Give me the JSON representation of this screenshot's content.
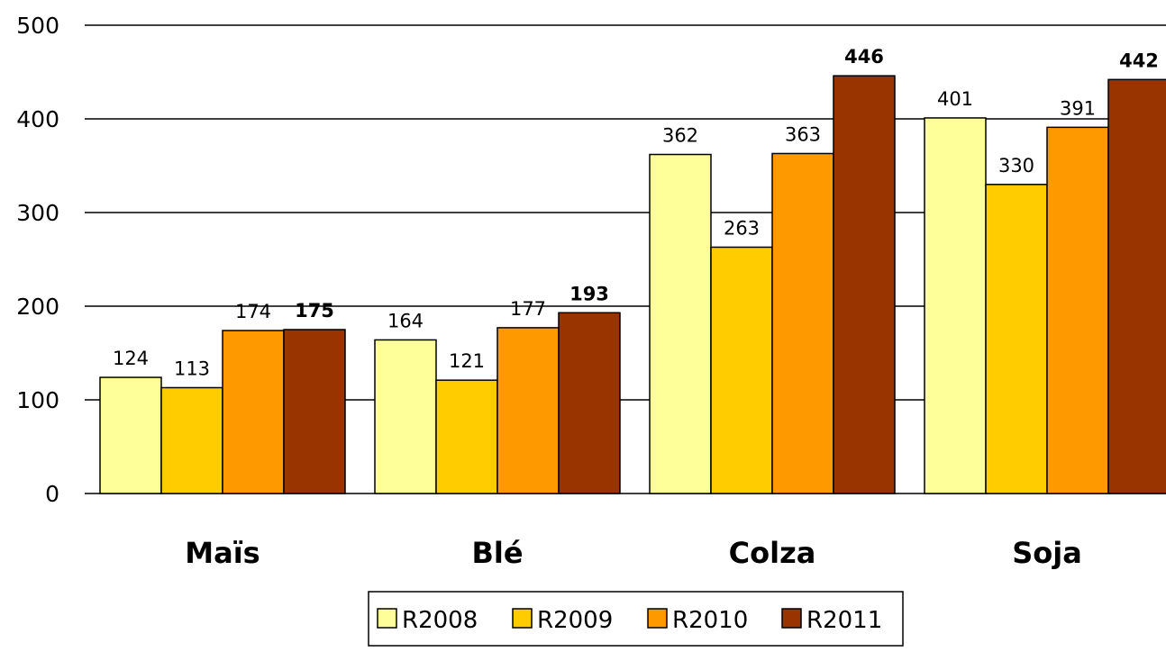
{
  "chart_data": {
    "type": "bar",
    "categories": [
      "Maïs",
      "Blé",
      "Colza",
      "Soja"
    ],
    "series": [
      {
        "name": "R2008",
        "color": "#FFFF99",
        "values": [
          124,
          164,
          362,
          401
        ]
      },
      {
        "name": "R2009",
        "color": "#FFCC00",
        "values": [
          113,
          121,
          263,
          330
        ]
      },
      {
        "name": "R2010",
        "color": "#FF9900",
        "values": [
          174,
          177,
          363,
          391
        ]
      },
      {
        "name": "R2011",
        "color": "#993300",
        "values": [
          175,
          193,
          446,
          442
        ],
        "label_bold": true
      }
    ],
    "yticks": [
      "0",
      "100",
      "200",
      "300",
      "400",
      "500"
    ],
    "ylim": [
      0,
      500
    ],
    "grid": true,
    "legend_position": "bottom"
  }
}
